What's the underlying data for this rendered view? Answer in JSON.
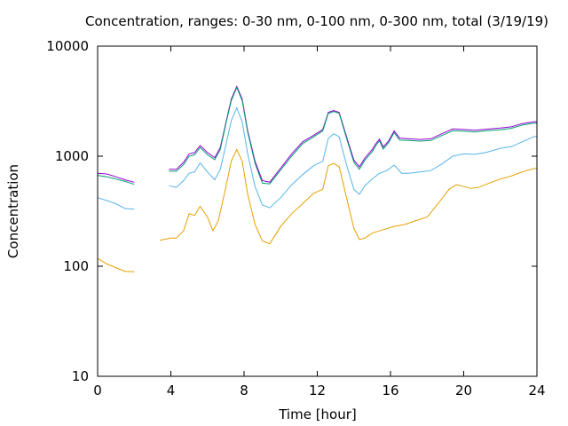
{
  "chart_data": {
    "type": "line",
    "title": "Concentration, ranges: 0-30 nm, 0-100 nm, 0-300 nm, total (3/19/19)",
    "xlabel": "Time [hour]",
    "ylabel": "Concentration",
    "xlim": [
      0,
      24
    ],
    "ylim": [
      10,
      10000
    ],
    "yscale": "log",
    "grid": false,
    "x_ticks": [
      0,
      4,
      8,
      12,
      16,
      20,
      24
    ],
    "y_ticks": [
      10,
      100,
      1000,
      10000
    ],
    "x_tick_labels": [
      "0",
      "4",
      "8",
      "12",
      "16",
      "20",
      "24"
    ],
    "y_tick_labels": [
      "10",
      "100",
      "1000",
      "10000"
    ],
    "colors": {
      "total": "#9400d3",
      "r300": "#009e73",
      "r100": "#56b4e9",
      "r30": "#e69f00"
    },
    "series": [
      {
        "color": "#9400d3",
        "segments": [
          [
            [
              0,
              700
            ],
            [
              0.5,
              690
            ],
            [
              1,
              650
            ],
            [
              1.5,
              610
            ],
            [
              2,
              580
            ]
          ],
          [
            [
              3.9,
              760
            ],
            [
              4.3,
              760
            ],
            [
              4.7,
              880
            ],
            [
              5.0,
              1050
            ],
            [
              5.3,
              1080
            ],
            [
              5.6,
              1250
            ],
            [
              6.0,
              1080
            ],
            [
              6.4,
              970
            ],
            [
              6.7,
              1200
            ],
            [
              7.0,
              2000
            ],
            [
              7.3,
              3300
            ],
            [
              7.6,
              4300
            ],
            [
              7.9,
              3300
            ],
            [
              8.2,
              1700
            ],
            [
              8.6,
              900
            ],
            [
              9.0,
              600
            ],
            [
              9.4,
              580
            ],
            [
              10.0,
              780
            ],
            [
              10.6,
              1050
            ],
            [
              11.2,
              1350
            ],
            [
              11.8,
              1550
            ],
            [
              12.3,
              1750
            ],
            [
              12.6,
              2500
            ],
            [
              12.9,
              2600
            ],
            [
              13.2,
              2500
            ],
            [
              13.6,
              1500
            ],
            [
              14.0,
              920
            ],
            [
              14.3,
              800
            ],
            [
              14.6,
              960
            ],
            [
              15.0,
              1150
            ],
            [
              15.2,
              1300
            ],
            [
              15.4,
              1430
            ],
            [
              15.6,
              1210
            ],
            [
              15.9,
              1380
            ],
            [
              16.2,
              1700
            ],
            [
              16.5,
              1460
            ],
            [
              17.0,
              1440
            ],
            [
              17.6,
              1420
            ],
            [
              18.2,
              1440
            ],
            [
              18.8,
              1600
            ],
            [
              19.4,
              1770
            ],
            [
              20.0,
              1750
            ],
            [
              20.6,
              1720
            ],
            [
              21.2,
              1760
            ],
            [
              22.0,
              1800
            ],
            [
              22.6,
              1850
            ],
            [
              23.2,
              1980
            ],
            [
              23.8,
              2050
            ],
            [
              24.0,
              2060
            ]
          ]
        ]
      },
      {
        "color": "#009e73",
        "segments": [
          [
            [
              0,
              670
            ],
            [
              0.5,
              650
            ],
            [
              1,
              620
            ],
            [
              1.5,
              590
            ],
            [
              2,
              555
            ]
          ],
          [
            [
              3.9,
              730
            ],
            [
              4.3,
              730
            ],
            [
              4.7,
              840
            ],
            [
              5.0,
              1000
            ],
            [
              5.3,
              1030
            ],
            [
              5.6,
              1200
            ],
            [
              6.0,
              1030
            ],
            [
              6.4,
              930
            ],
            [
              6.7,
              1150
            ],
            [
              7.0,
              1950
            ],
            [
              7.3,
              3200
            ],
            [
              7.6,
              4200
            ],
            [
              7.9,
              3200
            ],
            [
              8.2,
              1650
            ],
            [
              8.6,
              860
            ],
            [
              9.0,
              570
            ],
            [
              9.4,
              560
            ],
            [
              10.0,
              750
            ],
            [
              10.6,
              1000
            ],
            [
              11.2,
              1300
            ],
            [
              11.8,
              1500
            ],
            [
              12.3,
              1700
            ],
            [
              12.6,
              2450
            ],
            [
              12.9,
              2550
            ],
            [
              13.2,
              2450
            ],
            [
              13.6,
              1450
            ],
            [
              14.0,
              880
            ],
            [
              14.3,
              760
            ],
            [
              14.6,
              920
            ],
            [
              15.0,
              1100
            ],
            [
              15.2,
              1250
            ],
            [
              15.4,
              1380
            ],
            [
              15.6,
              1160
            ],
            [
              15.9,
              1330
            ],
            [
              16.2,
              1640
            ],
            [
              16.5,
              1400
            ],
            [
              17.0,
              1390
            ],
            [
              17.6,
              1370
            ],
            [
              18.2,
              1390
            ],
            [
              18.8,
              1540
            ],
            [
              19.4,
              1700
            ],
            [
              20.0,
              1690
            ],
            [
              20.6,
              1660
            ],
            [
              21.2,
              1700
            ],
            [
              22.0,
              1740
            ],
            [
              22.6,
              1790
            ],
            [
              23.2,
              1920
            ],
            [
              23.8,
              1990
            ],
            [
              24.0,
              2000
            ]
          ]
        ]
      },
      {
        "color": "#56b4e9",
        "segments": [
          [
            [
              0,
              420
            ],
            [
              0.5,
              395
            ],
            [
              1,
              370
            ],
            [
              1.5,
              335
            ],
            [
              2,
              330
            ]
          ],
          [
            [
              3.9,
              540
            ],
            [
              4.3,
              520
            ],
            [
              4.7,
              600
            ],
            [
              5.0,
              700
            ],
            [
              5.3,
              720
            ],
            [
              5.6,
              870
            ],
            [
              6.0,
              720
            ],
            [
              6.4,
              610
            ],
            [
              6.7,
              760
            ],
            [
              7.0,
              1250
            ],
            [
              7.3,
              2100
            ],
            [
              7.6,
              2750
            ],
            [
              7.9,
              2050
            ],
            [
              8.2,
              1050
            ],
            [
              8.6,
              530
            ],
            [
              9.0,
              360
            ],
            [
              9.4,
              340
            ],
            [
              10.0,
              420
            ],
            [
              10.6,
              550
            ],
            [
              11.2,
              680
            ],
            [
              11.8,
              820
            ],
            [
              12.3,
              900
            ],
            [
              12.6,
              1450
            ],
            [
              12.9,
              1600
            ],
            [
              13.2,
              1500
            ],
            [
              13.6,
              830
            ],
            [
              14.0,
              500
            ],
            [
              14.3,
              450
            ],
            [
              14.6,
              540
            ],
            [
              15.0,
              620
            ],
            [
              15.4,
              700
            ],
            [
              15.8,
              740
            ],
            [
              16.2,
              830
            ],
            [
              16.6,
              700
            ],
            [
              17.0,
              700
            ],
            [
              17.6,
              720
            ],
            [
              18.2,
              740
            ],
            [
              18.8,
              850
            ],
            [
              19.4,
              1000
            ],
            [
              20.0,
              1050
            ],
            [
              20.6,
              1040
            ],
            [
              21.2,
              1080
            ],
            [
              22.0,
              1180
            ],
            [
              22.6,
              1220
            ],
            [
              23.2,
              1350
            ],
            [
              23.8,
              1500
            ],
            [
              24.0,
              1520
            ]
          ]
        ]
      },
      {
        "color": "#e69f00",
        "segments": [
          [
            [
              0,
              118
            ],
            [
              0.5,
              105
            ],
            [
              1,
              97
            ],
            [
              1.5,
              90
            ],
            [
              2,
              89
            ]
          ],
          [
            [
              3.4,
              172
            ],
            [
              4.0,
              180
            ],
            [
              4.3,
              180
            ],
            [
              4.7,
              210
            ],
            [
              5.0,
              300
            ],
            [
              5.3,
              290
            ],
            [
              5.6,
              350
            ],
            [
              6.0,
              280
            ],
            [
              6.3,
              210
            ],
            [
              6.6,
              260
            ],
            [
              7.0,
              520
            ],
            [
              7.3,
              900
            ],
            [
              7.6,
              1150
            ],
            [
              7.9,
              900
            ],
            [
              8.2,
              450
            ],
            [
              8.6,
              240
            ],
            [
              9.0,
              170
            ],
            [
              9.4,
              160
            ],
            [
              10.0,
              230
            ],
            [
              10.6,
              300
            ],
            [
              11.2,
              370
            ],
            [
              11.8,
              460
            ],
            [
              12.3,
              500
            ],
            [
              12.6,
              820
            ],
            [
              12.9,
              860
            ],
            [
              13.2,
              800
            ],
            [
              13.6,
              420
            ],
            [
              14.0,
              220
            ],
            [
              14.3,
              175
            ],
            [
              14.6,
              180
            ],
            [
              15.0,
              200
            ],
            [
              15.6,
              215
            ],
            [
              16.2,
              230
            ],
            [
              16.8,
              240
            ],
            [
              17.4,
              260
            ],
            [
              18.0,
              280
            ],
            [
              18.6,
              370
            ],
            [
              19.2,
              500
            ],
            [
              19.6,
              550
            ],
            [
              20.0,
              530
            ],
            [
              20.4,
              510
            ],
            [
              20.8,
              520
            ],
            [
              21.4,
              570
            ],
            [
              22.0,
              620
            ],
            [
              22.6,
              660
            ],
            [
              23.2,
              720
            ],
            [
              23.8,
              770
            ],
            [
              24.0,
              780
            ]
          ]
        ]
      }
    ]
  }
}
